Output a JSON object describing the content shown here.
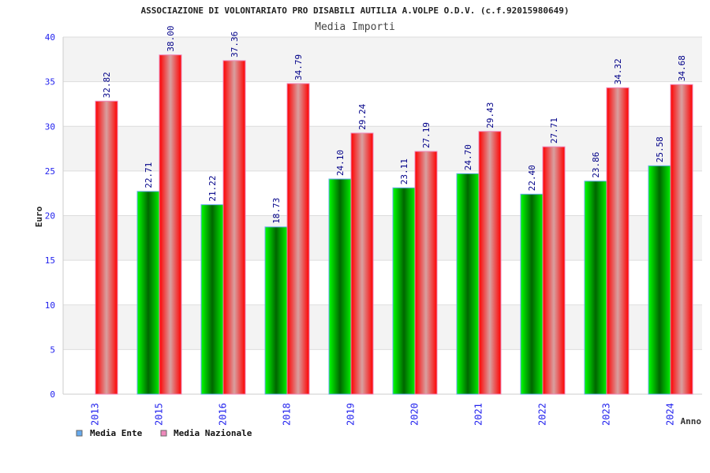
{
  "chart_data": {
    "type": "bar",
    "title": "ASSOCIAZIONE DI VOLONTARIATO PRO DISABILI AUTILIA A.VOLPE O.D.V. (c.f.92015980649)",
    "subtitle": "Media Importi",
    "xlabel": "Anno",
    "ylabel": "Euro",
    "ylim": [
      0,
      40
    ],
    "yticks": [
      0,
      5,
      10,
      15,
      20,
      25,
      30,
      35,
      40
    ],
    "grid": true,
    "legend_position": "bottom-left",
    "categories": [
      "2013",
      "2015",
      "2016",
      "2018",
      "2019",
      "2020",
      "2021",
      "2022",
      "2023",
      "2024"
    ],
    "series": [
      {
        "name": "Media Ente",
        "color": "#66aaee",
        "values": [
          null,
          22.71,
          21.22,
          18.73,
          24.1,
          23.11,
          24.7,
          22.4,
          23.86,
          25.58
        ]
      },
      {
        "name": "Media Nazionale",
        "color": "#ee88bb",
        "values": [
          32.82,
          38.0,
          37.36,
          34.79,
          29.24,
          27.19,
          29.43,
          27.71,
          34.32,
          34.68
        ]
      }
    ]
  }
}
